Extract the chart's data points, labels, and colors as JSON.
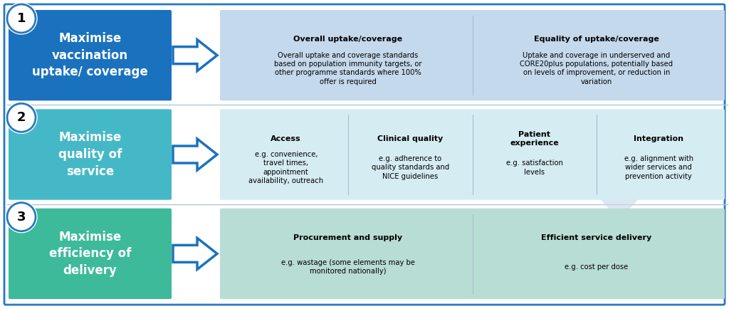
{
  "background_color": "#ffffff",
  "outer_border_color": "#2878be",
  "rows": [
    {
      "number": "1",
      "left_box_color": "#1a72be",
      "left_box_text": "Maximise\nvaccination\nuptake/ coverage",
      "left_box_text_color": "#ffffff",
      "arrow_face_color": "#ffffff",
      "arrow_edge_color": "#1a72be",
      "right_bg_color": "#c5d9ed",
      "right_boxes": [
        {
          "title": "Overall uptake/coverage",
          "body": "Overall uptake and coverage standards\nbased on population immunity targets, or\nother programme standards where 100%\noffer is required",
          "text_color": "#000000"
        },
        {
          "title": "Equality of uptake/coverage",
          "body": "Uptake and coverage in underserved and\nCORE20plus populations, potentially based\non levels of improvement, or reduction in\nvariation",
          "text_color": "#000000"
        }
      ]
    },
    {
      "number": "2",
      "left_box_color": "#45b8c8",
      "left_box_text": "Maximise\nquality of\nservice",
      "left_box_text_color": "#ffffff",
      "arrow_face_color": "#ffffff",
      "arrow_edge_color": "#1a72be",
      "right_bg_color": "#d5ecf3",
      "right_boxes": [
        {
          "title": "Access",
          "body": "e.g. convenience,\ntravel times,\nappointment\navailability, outreach",
          "text_color": "#000000"
        },
        {
          "title": "Clinical quality",
          "body": "e.g. adherence to\nquality standards and\nNICE guidelines",
          "text_color": "#000000"
        },
        {
          "title": "Patient\nexperience",
          "body": "e.g. satisfaction\nlevels",
          "text_color": "#000000"
        },
        {
          "title": "Integration",
          "body": "e.g. alignment with\nwider services and\nprevention activity",
          "text_color": "#000000"
        }
      ]
    },
    {
      "number": "3",
      "left_box_color": "#3dba9a",
      "left_box_text": "Maximise\nefficiency of\ndelivery",
      "left_box_text_color": "#ffffff",
      "arrow_face_color": "#ffffff",
      "arrow_edge_color": "#1a72be",
      "right_bg_color": "#b8ddd4",
      "right_boxes": [
        {
          "title": "Procurement and supply",
          "body": "e.g. wastage (some elements may be\nmonitored nationally)",
          "text_color": "#000000"
        },
        {
          "title": "Efficient service delivery",
          "body": "e.g. cost per dose",
          "text_color": "#000000"
        }
      ]
    }
  ],
  "watermark_arrow_color": "#c8d8e8",
  "watermark_arrow_alpha": 0.6
}
